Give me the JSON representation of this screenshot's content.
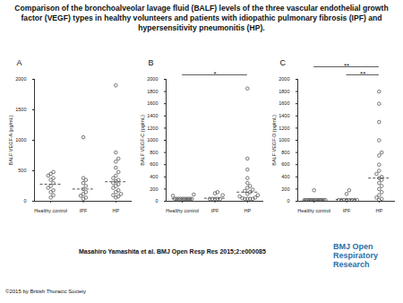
{
  "title": "Comparison of the bronchoalveolar lavage fluid (BALF) levels of the three vascular endothelial growth factor (VEGF) types in healthy volunteers and patients with idiopathic pulmonary fibrosis (IPF) and hypersensitivity pneumonitis (HP).",
  "citation": "Masahiro Yamashita et al. BMJ Open Resp Res 2015;2:e000085",
  "copyright": "©2015 by British Thoracic Society",
  "journal": "BMJ Open Respiratory Research",
  "chart_data": [
    {
      "type": "scatter",
      "panel": "A",
      "ylabel": "BALF VEGF-A (pg/mL)",
      "categories": [
        "Healthy control",
        "IPF",
        "HP"
      ],
      "ylim": [
        0,
        2000
      ],
      "yticks": [
        0,
        500,
        1000,
        1500,
        2000
      ],
      "grid": false,
      "marker": "circle",
      "line_style": "dashed",
      "color": "#555555",
      "points": [
        [
          450,
          480,
          420,
          380,
          350,
          300,
          250,
          220,
          180,
          150,
          100,
          60
        ],
        [
          1050,
          380,
          350,
          300,
          250,
          200,
          150,
          120,
          90,
          60,
          40
        ],
        [
          1900,
          800,
          700,
          650,
          550,
          480,
          420,
          380,
          350,
          330,
          300,
          280,
          250,
          220,
          180,
          150,
          120,
          100,
          80,
          60
        ]
      ],
      "medians": [
        280,
        200,
        320
      ],
      "significance": []
    },
    {
      "type": "scatter",
      "panel": "B",
      "ylabel": "BALF VEGF-C (pg/mL)",
      "categories": [
        "Healthy control",
        "IPF",
        "HP"
      ],
      "ylim": [
        0,
        2000
      ],
      "yticks": [
        0,
        200,
        400,
        600,
        800,
        1000,
        1200,
        1400,
        1600,
        1800,
        2000
      ],
      "grid": false,
      "marker": "circle",
      "line_style": "dashed",
      "color": "#555555",
      "points": [
        [
          40,
          40,
          40,
          40,
          40,
          40,
          40,
          40,
          40,
          40,
          110,
          90
        ],
        [
          40,
          40,
          40,
          40,
          40,
          100,
          150,
          130
        ],
        [
          1850,
          700,
          520,
          380,
          300,
          250,
          220,
          190,
          170,
          150,
          120,
          100,
          80,
          60,
          50,
          40,
          40,
          40,
          40
        ]
      ],
      "medians": [
        40,
        50,
        150
      ],
      "significance": [
        {
          "between": [
            "Healthy control",
            "HP"
          ],
          "label": "*"
        }
      ]
    },
    {
      "type": "scatter",
      "panel": "C",
      "ylabel": "BALF VEGF-D (pg/mL)",
      "categories": [
        "Healthy control",
        "IPF",
        "HP"
      ],
      "ylim": [
        0,
        2000
      ],
      "yticks": [
        0,
        200,
        400,
        600,
        800,
        1000,
        1200,
        1400,
        1600,
        1800,
        2000
      ],
      "grid": false,
      "marker": "circle",
      "line_style": "dashed",
      "color": "#555555",
      "points": [
        [
          20,
          20,
          20,
          20,
          20,
          20,
          20,
          20,
          20,
          20,
          20,
          20,
          20,
          20,
          180
        ],
        [
          20,
          20,
          20,
          20,
          20,
          20,
          20,
          20,
          120,
          180
        ],
        [
          1800,
          1600,
          1300,
          1000,
          800,
          750,
          600,
          500,
          450,
          400,
          380,
          350,
          300,
          250,
          200,
          150,
          100,
          60,
          40,
          20
        ]
      ],
      "medians": [
        20,
        30,
        380
      ],
      "significance": [
        {
          "between": [
            "IPF",
            "HP"
          ],
          "label": "**"
        },
        {
          "between": [
            "Healthy control",
            "HP"
          ],
          "label": "**"
        }
      ]
    }
  ]
}
